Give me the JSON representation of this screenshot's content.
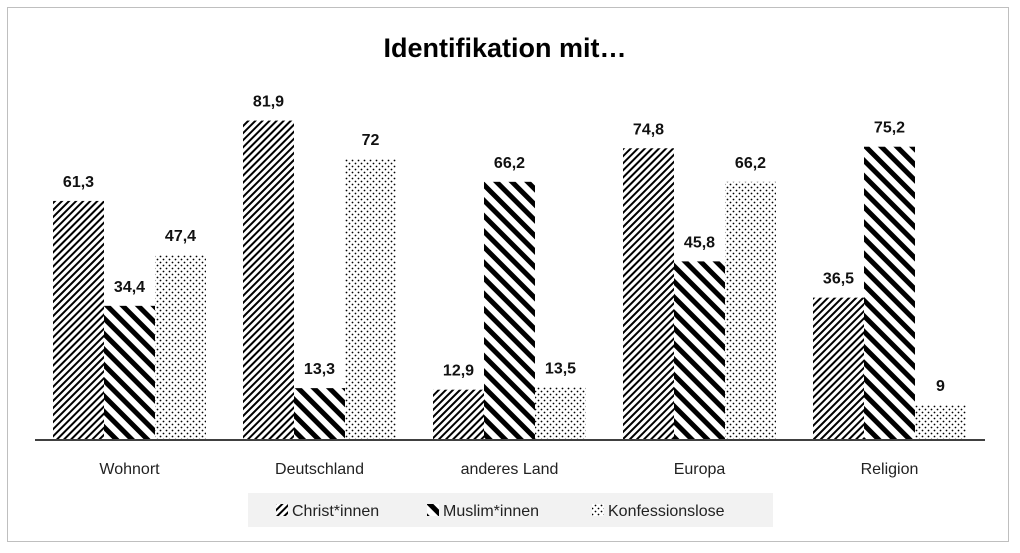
{
  "chart_data": {
    "type": "bar",
    "title": "Identifikation mit…",
    "categories": [
      "Wohnort",
      "Deutschland",
      "anderes Land",
      "Europa",
      "Religion"
    ],
    "series": [
      {
        "name": "Christ*innen",
        "values": [
          61.3,
          81.9,
          12.9,
          74.8,
          36.5
        ],
        "labels": [
          "61,3",
          "81,9",
          "12,9",
          "74,8",
          "36,5"
        ],
        "pattern": "fine-diagonal-hatch"
      },
      {
        "name": "Muslim*innen",
        "values": [
          34.4,
          13.3,
          66.2,
          45.8,
          75.2
        ],
        "labels": [
          "34,4",
          "13,3",
          "66,2",
          "45,8",
          "75,2"
        ],
        "pattern": "wide-diagonal-hatch"
      },
      {
        "name": "Konfessionslose",
        "values": [
          47.4,
          72,
          13.5,
          66.2,
          9
        ],
        "labels": [
          "47,4",
          "72",
          "13,5",
          "66,2",
          "9"
        ],
        "pattern": "dotted"
      }
    ],
    "ylim": [
      0,
      100
    ],
    "grid": false,
    "legend_position": "bottom",
    "colors": {
      "ink": "#000000",
      "axis": "#404040",
      "border": "#bfbfbf"
    }
  }
}
